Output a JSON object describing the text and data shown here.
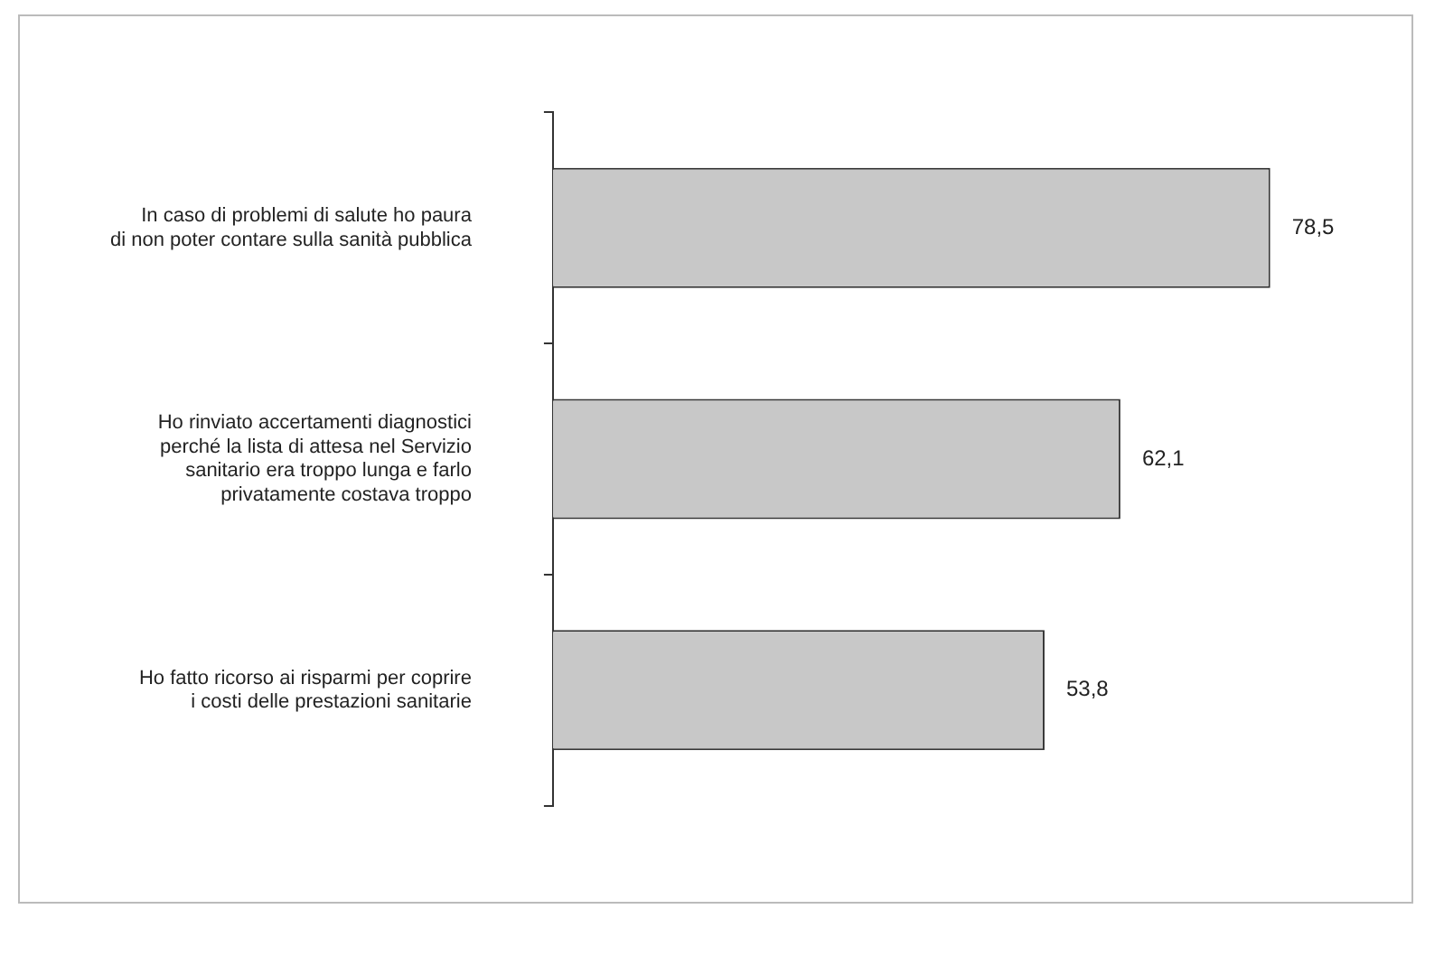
{
  "chart_data": {
    "type": "bar",
    "orientation": "horizontal",
    "categories": [
      "In caso di problemi di salute ho paura\ndi non poter contare sulla sanità pubblica",
      "Ho rinviato accertamenti diagnostici\nperché la lista di attesa nel Servizio\nsanitario era troppo lunga e farlo\nprivatamente costava troppo",
      "Ho fatto ricorso ai risparmi per coprire\ni costi delle prestazioni sanitarie"
    ],
    "values": [
      78.5,
      62.1,
      53.8
    ],
    "value_labels": [
      "78,5",
      "62,1",
      "53,8"
    ],
    "color": "#c8c8c8",
    "legend": false,
    "tick_labels": "y"
  }
}
